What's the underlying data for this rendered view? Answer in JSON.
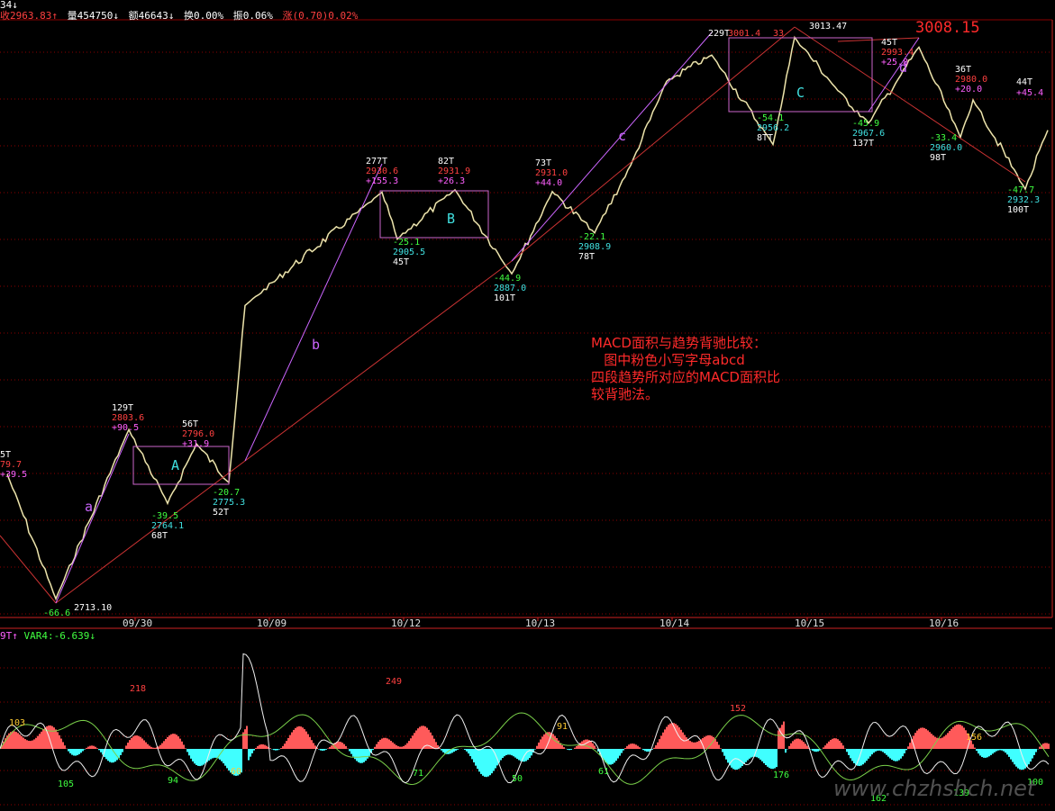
{
  "header": {
    "corner_text": "34↓",
    "close": "收2963.83↑",
    "volume": "量454750↓",
    "amount": "额46643↓",
    "turnover": "换0.00%",
    "amplitude": "振0.06%",
    "change": "涨(0.70)0.02%"
  },
  "indicator_header": {
    "left_text": "9T↑",
    "var4": "VAR4:-6.639↓"
  },
  "annotation": {
    "lines": [
      "MACD面积与趋势背驰比较：",
      "   图中粉色小写字母abcd",
      "四段趋势所对应的MACD面积比",
      "较背驰法。"
    ]
  },
  "watermark": "www.chzhshch.net",
  "colors": {
    "price_line": "#e8e8c8",
    "up": "#ff4040",
    "down": "#40ffff",
    "trend_line": "#cc3333",
    "segment_line": "#cc66ff",
    "box": "#cc66cc",
    "grid": "#8b0000"
  },
  "chart_data": [
    {
      "type": "line",
      "name": "price",
      "x_ticks": [
        "09/30",
        "10/09",
        "10/12",
        "10/13",
        "10/14",
        "10/15",
        "10/16"
      ],
      "x": [
        0,
        1,
        2,
        3,
        4,
        5,
        6,
        7,
        8,
        9,
        10,
        11,
        12,
        13,
        14,
        15,
        16,
        17,
        18,
        19,
        20,
        21,
        22,
        23,
        24,
        25,
        26,
        27,
        28,
        29,
        30,
        31,
        32
      ],
      "y": [
        2779.7,
        2713.1,
        2803.6,
        2764.1,
        2796.0,
        2775.3,
        2870.0,
        2930.6,
        2905.5,
        2931.9,
        2887.0,
        2931.0,
        2908.9,
        2945.0,
        2990.0,
        3004.0,
        2956.2,
        3013.5,
        2985.0,
        2967.6,
        2993.4,
        3008.2,
        2960.0,
        2980.0,
        2932.3,
        2963.8,
        2963.8,
        2963.8,
        2963.8,
        2963.8,
        2963.8,
        2963.8,
        2963.8
      ],
      "point_labels": [
        {
          "lines": [
            "5T",
            "79.7",
            "+39.5"
          ]
        },
        {
          "lines": [
            "-66.6",
            "2713.10"
          ]
        },
        {
          "lines": [
            "129T",
            "2803.6",
            "+90.5"
          ]
        },
        {
          "lines": [
            "-39.5",
            "2764.1",
            "68T"
          ]
        },
        {
          "lines": [
            "56T",
            "2796.0",
            "+31.9"
          ]
        },
        {
          "lines": [
            "-20.7",
            "2775.3",
            "52T"
          ]
        },
        {
          "lines": [
            "277T",
            "2930.6",
            "+155.3"
          ]
        },
        {
          "lines": [
            "-25.1",
            "2905.5",
            "45T"
          ]
        },
        {
          "lines": [
            "82T",
            "2931.9",
            "+26.3"
          ]
        },
        {
          "lines": [
            "-44.9",
            "2887.0",
            "101T"
          ]
        },
        {
          "lines": [
            "73T",
            "2931.0",
            "+44.0"
          ]
        },
        {
          "lines": [
            "-22.1",
            "2908.9",
            "78T"
          ]
        },
        {
          "lines": [
            "229T",
            "3001.4"
          ]
        },
        {
          "lines": [
            "-54.1",
            "2956.2",
            "8TT"
          ]
        },
        {
          "lines": [
            "33",
            "3013.47"
          ]
        },
        {
          "lines": [
            "-45.9",
            "2967.6",
            "137T"
          ]
        },
        {
          "lines": [
            "45T",
            "2993.4",
            "+25.8"
          ]
        },
        {
          "lines": [
            "3008.15"
          ]
        },
        {
          "lines": [
            "36T",
            "2980.0",
            "+20.0"
          ]
        },
        {
          "lines": [
            "-33.4",
            "2960.0",
            "98T"
          ]
        },
        {
          "lines": [
            "-47.7",
            "2932.3",
            "100T"
          ]
        },
        {
          "lines": [
            "44T",
            "+45.4"
          ]
        }
      ],
      "segment_labels": [
        "a",
        "b",
        "c",
        "d"
      ],
      "box_labels": [
        "A",
        "B",
        "C"
      ]
    },
    {
      "type": "bar",
      "name": "MACD",
      "series_names": [
        "VAR4"
      ],
      "value_labels": [
        "103",
        "105",
        "218",
        "94",
        "60",
        "249",
        "71",
        "91",
        "50",
        "61",
        "152",
        "176",
        "162",
        "156",
        "139",
        "100"
      ]
    }
  ]
}
